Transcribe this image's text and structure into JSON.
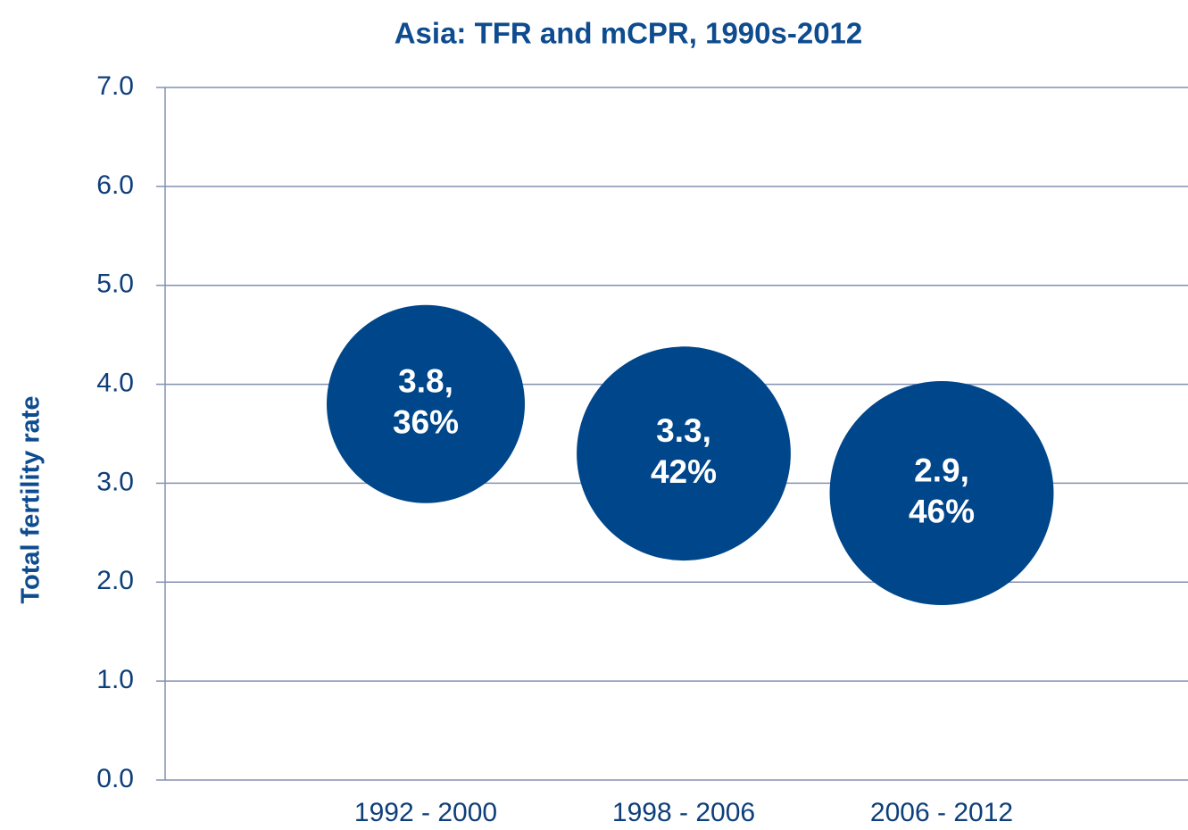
{
  "chart_data": {
    "type": "bubble",
    "title": "Asia: TFR and mCPR, 1990s-2012",
    "y_label": "Total fertility rate",
    "categories": [
      "1992 - 2000",
      "1998 - 2006",
      "2006 - 2012"
    ],
    "series": [
      {
        "color": "#00468b",
        "values": [
          3.8,
          3.3,
          2.9
        ],
        "value_labels": [
          "3.8,",
          "3.3,",
          "2.9,"
        ],
        "sizes": [
          36,
          42,
          46
        ],
        "size_labels": [
          "36%",
          "42%",
          "46%"
        ]
      }
    ],
    "ylim": [
      0,
      7
    ],
    "yticks": [
      {
        "value": 0,
        "label": "0.0"
      },
      {
        "value": 1,
        "label": "1.0"
      },
      {
        "value": 2,
        "label": "2.0"
      },
      {
        "value": 3,
        "label": "3.0"
      },
      {
        "value": 4,
        "label": "4.0"
      },
      {
        "value": 5,
        "label": "5.0"
      },
      {
        "value": 6,
        "label": "6.0"
      },
      {
        "value": 7,
        "label": "7.0"
      }
    ],
    "grid": true
  }
}
